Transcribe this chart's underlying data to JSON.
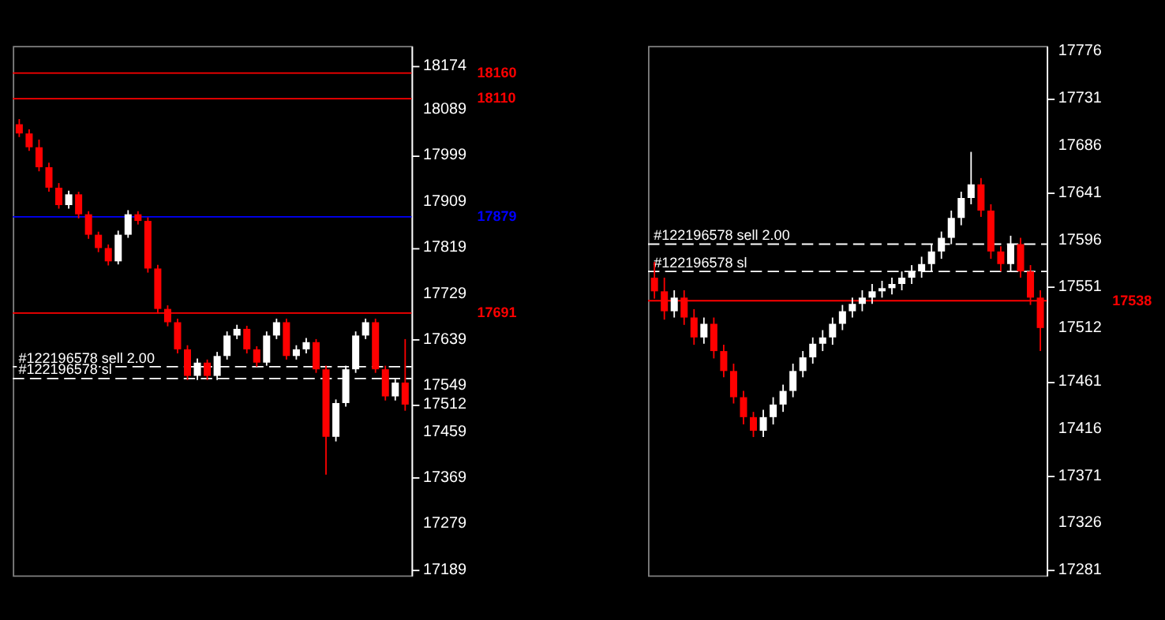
{
  "chart_data": [
    {
      "type": "candlestick",
      "categories": [
        null,
        null,
        null,
        null,
        null,
        null,
        null,
        null,
        null,
        null,
        null,
        null,
        null,
        null,
        null,
        null,
        null,
        null,
        null,
        null,
        null,
        null,
        null,
        null,
        null,
        null,
        null,
        null,
        null,
        null,
        null,
        null,
        null,
        null,
        null,
        null,
        null,
        null,
        null,
        null
      ],
      "ohlc": [
        [
          18060,
          18070,
          18035,
          18042
        ],
        [
          18042,
          18050,
          18008,
          18015
        ],
        [
          18015,
          18030,
          17968,
          17976
        ],
        [
          17976,
          17985,
          17928,
          17936
        ],
        [
          17936,
          17945,
          17895,
          17902
        ],
        [
          17902,
          17930,
          17895,
          17923
        ],
        [
          17923,
          17928,
          17876,
          17884
        ],
        [
          17884,
          17890,
          17836,
          17844
        ],
        [
          17844,
          17850,
          17810,
          17818
        ],
        [
          17818,
          17825,
          17784,
          17792
        ],
        [
          17792,
          17852,
          17786,
          17844
        ],
        [
          17844,
          17892,
          17838,
          17884
        ],
        [
          17884,
          17890,
          17864,
          17871
        ],
        [
          17871,
          17878,
          17770,
          17778
        ],
        [
          17778,
          17785,
          17690,
          17699
        ],
        [
          17699,
          17706,
          17665,
          17673
        ],
        [
          17673,
          17680,
          17612,
          17620
        ],
        [
          17620,
          17628,
          17560,
          17568
        ],
        [
          17568,
          17602,
          17560,
          17594
        ],
        [
          17594,
          17600,
          17560,
          17568
        ],
        [
          17568,
          17615,
          17560,
          17607
        ],
        [
          17607,
          17655,
          17600,
          17647
        ],
        [
          17647,
          17668,
          17640,
          17660
        ],
        [
          17660,
          17666,
          17612,
          17620
        ],
        [
          17620,
          17626,
          17586,
          17594
        ],
        [
          17594,
          17655,
          17588,
          17647
        ],
        [
          17647,
          17680,
          17640,
          17673
        ],
        [
          17673,
          17680,
          17600,
          17607
        ],
        [
          17607,
          17628,
          17600,
          17620
        ],
        [
          17620,
          17642,
          17612,
          17634
        ],
        [
          17634,
          17640,
          17574,
          17581
        ],
        [
          17581,
          17588,
          17375,
          17449
        ],
        [
          17449,
          17522,
          17440,
          17515
        ],
        [
          17515,
          17588,
          17508,
          17581
        ],
        [
          17581,
          17655,
          17574,
          17647
        ],
        [
          17647,
          17680,
          17640,
          17673
        ],
        [
          17673,
          17680,
          17574,
          17581
        ],
        [
          17581,
          17588,
          17520,
          17528
        ],
        [
          17528,
          17562,
          17520,
          17555
        ],
        [
          17555,
          17640,
          17500,
          17512
        ]
      ],
      "colors": [
        "#ff0000",
        "#ff0000",
        "#ff0000",
        "#ff0000",
        "#ff0000",
        "#ffffff",
        "#ff0000",
        "#ff0000",
        "#ff0000",
        "#ff0000",
        "#ffffff",
        "#ffffff",
        "#ff0000",
        "#ff0000",
        "#ff0000",
        "#ff0000",
        "#ff0000",
        "#ff0000",
        "#ffffff",
        "#ff0000",
        "#ffffff",
        "#ffffff",
        "#ffffff",
        "#ff0000",
        "#ff0000",
        "#ffffff",
        "#ffffff",
        "#ff0000",
        "#ffffff",
        "#ffffff",
        "#ff0000",
        "#ff0000",
        "#ffffff",
        "#ffffff",
        "#ffffff",
        "#ffffff",
        "#ff0000",
        "#ff0000",
        "#ffffff",
        "#ff0000"
      ],
      "ylim": [
        17178,
        18213
      ],
      "yticks": [
        17189,
        17279,
        17369,
        17459,
        17512,
        17549,
        17639,
        17729,
        17819,
        17909,
        17999,
        18089,
        18174
      ],
      "ref_lines": [
        {
          "axis": "y",
          "value": 18160,
          "label": "18160",
          "color": "#ff0000",
          "line_style": "solid"
        },
        {
          "axis": "y",
          "value": 18110,
          "label": "18110",
          "color": "#ff0000",
          "line_style": "solid"
        },
        {
          "axis": "y",
          "value": 17879,
          "label": "17879",
          "color": "#0000ff",
          "line_style": "solid"
        },
        {
          "axis": "y",
          "value": 17691,
          "label": "17691",
          "color": "#ff0000",
          "line_style": "solid"
        },
        {
          "axis": "y",
          "value": 17586,
          "label": "#122196578 sell 2.00",
          "color": "#ffffff",
          "line_style": "dashed"
        },
        {
          "axis": "y",
          "value": 17563,
          "label": "#122196578 sl",
          "color": "#ffffff",
          "line_style": "dashed"
        }
      ],
      "grid": false,
      "tick_labels": "y"
    },
    {
      "type": "candlestick",
      "categories": [
        null,
        null,
        null,
        null,
        null,
        null,
        null,
        null,
        null,
        null,
        null,
        null,
        null,
        null,
        null,
        null,
        null,
        null,
        null,
        null,
        null,
        null,
        null,
        null,
        null,
        null,
        null,
        null,
        null,
        null,
        null,
        null,
        null,
        null,
        null,
        null,
        null,
        null,
        null,
        null
      ],
      "ohlc": [
        [
          17560,
          17575,
          17540,
          17547
        ],
        [
          17547,
          17560,
          17520,
          17528
        ],
        [
          17528,
          17548,
          17522,
          17541
        ],
        [
          17541,
          17548,
          17515,
          17522
        ],
        [
          17522,
          17530,
          17496,
          17503
        ],
        [
          17503,
          17522,
          17497,
          17516
        ],
        [
          17516,
          17522,
          17483,
          17490
        ],
        [
          17490,
          17496,
          17465,
          17471
        ],
        [
          17471,
          17478,
          17440,
          17446
        ],
        [
          17446,
          17452,
          17420,
          17427
        ],
        [
          17427,
          17432,
          17408,
          17414
        ],
        [
          17414,
          17434,
          17408,
          17427
        ],
        [
          17427,
          17446,
          17420,
          17439
        ],
        [
          17439,
          17458,
          17432,
          17452
        ],
        [
          17452,
          17478,
          17446,
          17471
        ],
        [
          17471,
          17490,
          17465,
          17484
        ],
        [
          17484,
          17503,
          17478,
          17497
        ],
        [
          17497,
          17510,
          17490,
          17503
        ],
        [
          17503,
          17522,
          17496,
          17516
        ],
        [
          17516,
          17534,
          17510,
          17528
        ],
        [
          17528,
          17541,
          17522,
          17535
        ],
        [
          17535,
          17548,
          17528,
          17541
        ],
        [
          17541,
          17554,
          17535,
          17547
        ],
        [
          17547,
          17557,
          17541,
          17550
        ],
        [
          17550,
          17560,
          17544,
          17554
        ],
        [
          17554,
          17566,
          17548,
          17560
        ],
        [
          17560,
          17572,
          17554,
          17566
        ],
        [
          17566,
          17580,
          17560,
          17573
        ],
        [
          17573,
          17592,
          17566,
          17585
        ],
        [
          17585,
          17604,
          17578,
          17598
        ],
        [
          17598,
          17624,
          17592,
          17617
        ],
        [
          17617,
          17642,
          17610,
          17636
        ],
        [
          17636,
          17680,
          17630,
          17649
        ],
        [
          17649,
          17655,
          17618,
          17624
        ],
        [
          17624,
          17630,
          17578,
          17585
        ],
        [
          17585,
          17590,
          17566,
          17573
        ],
        [
          17573,
          17600,
          17566,
          17592
        ],
        [
          17592,
          17598,
          17560,
          17566
        ],
        [
          17566,
          17572,
          17534,
          17541
        ],
        [
          17541,
          17548,
          17490,
          17512
        ]
      ],
      "colors": [
        "#ff0000",
        "#ff0000",
        "#ffffff",
        "#ff0000",
        "#ff0000",
        "#ffffff",
        "#ff0000",
        "#ff0000",
        "#ff0000",
        "#ff0000",
        "#ff0000",
        "#ffffff",
        "#ffffff",
        "#ffffff",
        "#ffffff",
        "#ffffff",
        "#ffffff",
        "#ffffff",
        "#ffffff",
        "#ffffff",
        "#ffffff",
        "#ffffff",
        "#ffffff",
        "#ffffff",
        "#ffffff",
        "#ffffff",
        "#ffffff",
        "#ffffff",
        "#ffffff",
        "#ffffff",
        "#ffffff",
        "#ffffff",
        "#ffffff",
        "#ff0000",
        "#ff0000",
        "#ff0000",
        "#ffffff",
        "#ff0000",
        "#ff0000",
        "#ff0000"
      ],
      "ylim": [
        17276,
        17781
      ],
      "yticks": [
        17281,
        17326,
        17371,
        17416,
        17461,
        17512,
        17551,
        17596,
        17641,
        17686,
        17731,
        17776
      ],
      "ref_lines": [
        {
          "axis": "y",
          "value": 17592,
          "label": "#122196578 sell 2.00",
          "color": "#ffffff",
          "line_style": "dashed"
        },
        {
          "axis": "y",
          "value": 17566,
          "label": "#122196578 sl",
          "color": "#ffffff",
          "line_style": "dashed"
        },
        {
          "axis": "y",
          "value": 17538,
          "label": "17538",
          "color": "#ff0000",
          "line_style": "solid"
        }
      ],
      "grid": false,
      "tick_labels": "y"
    }
  ]
}
